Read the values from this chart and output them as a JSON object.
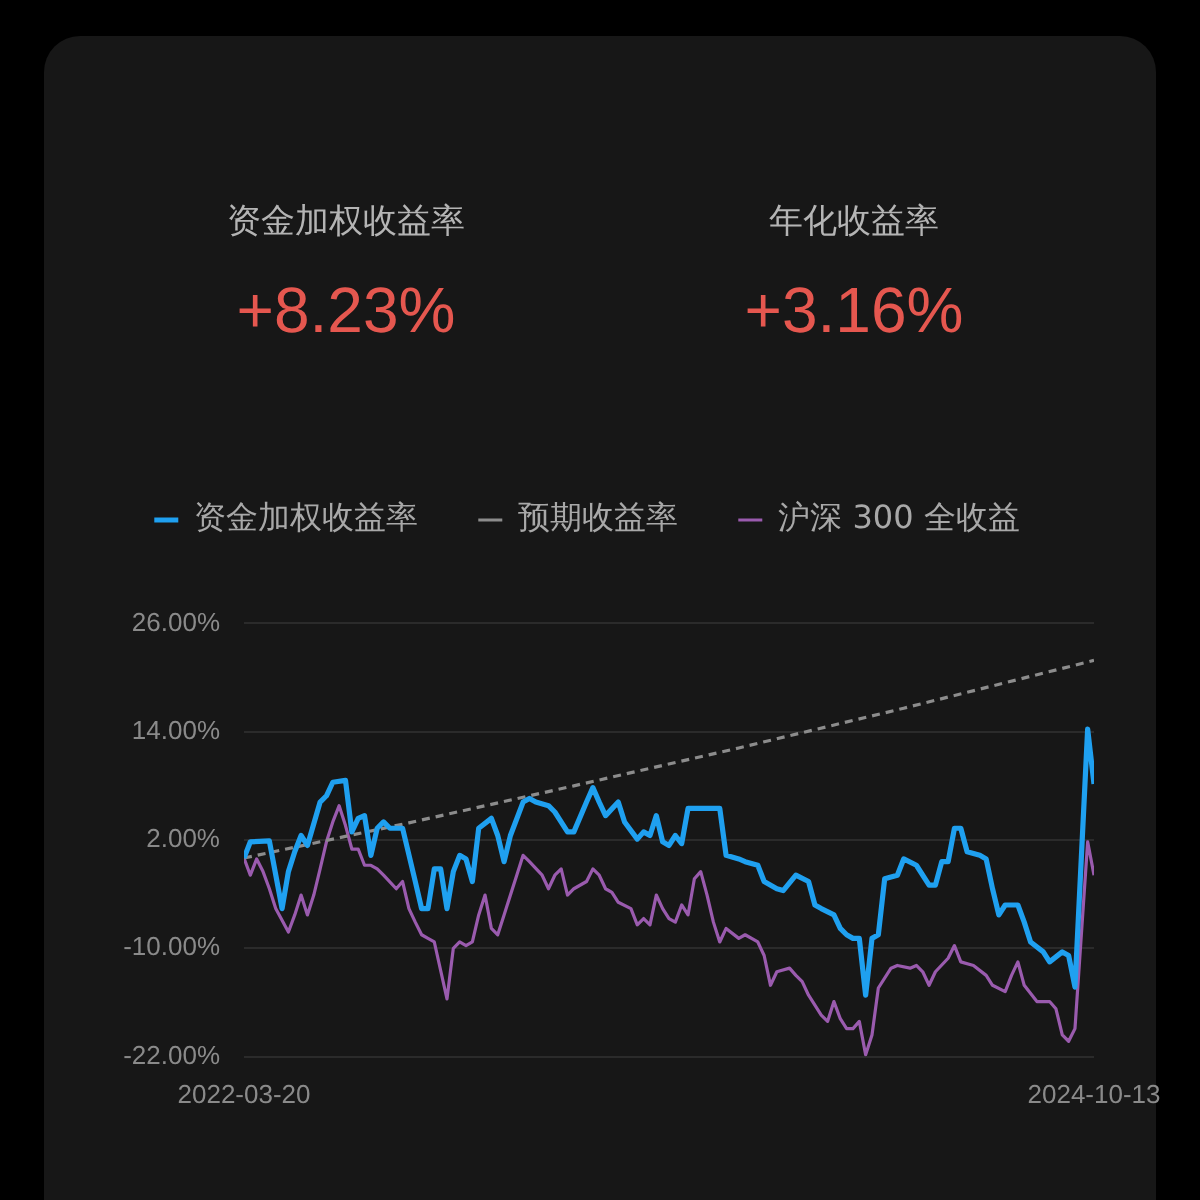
{
  "chart_data": [
    {
      "type": "other",
      "annotations": [
        "资金加权收益率",
        "+8.23%",
        "年化收益率",
        "+3.16%"
      ]
    },
    {
      "type": "line",
      "series": [
        {
          "name": "资金加权收益率",
          "color": "#1fa0f0",
          "x": [
            "2022-03-20",
            "2022-03-27",
            "2022-04-17",
            "2022-05-01",
            "2022-05-08",
            "2022-05-15",
            "2022-05-22",
            "2022-05-29",
            "2022-06-12",
            "2022-06-19",
            "2022-06-26",
            "2022-07-10",
            "2022-07-17",
            "2022-07-24",
            "2022-07-31",
            "2022-08-07",
            "2022-08-14",
            "2022-08-21",
            "2022-08-28",
            "2022-09-11",
            "2022-09-25",
            "2022-10-02",
            "2022-10-09",
            "2022-10-16",
            "2022-10-23",
            "2022-10-30",
            "2022-11-06",
            "2022-11-13",
            "2022-11-20",
            "2022-11-27",
            "2022-12-04",
            "2022-12-18",
            "2022-12-25",
            "2023-01-01",
            "2023-01-08",
            "2023-01-22",
            "2023-01-29",
            "2023-02-05",
            "2023-02-19",
            "2023-02-26",
            "2023-03-12",
            "2023-03-19",
            "2023-04-02",
            "2023-04-09",
            "2023-04-16",
            "2023-04-23",
            "2023-05-07",
            "2023-05-14",
            "2023-05-28",
            "2023-06-04",
            "2023-06-11",
            "2023-06-18",
            "2023-06-25",
            "2023-07-02",
            "2023-07-09",
            "2023-07-16",
            "2023-07-23",
            "2023-08-06",
            "2023-08-27",
            "2023-09-03",
            "2023-09-17",
            "2023-09-24",
            "2023-10-08",
            "2023-10-15",
            "2023-10-29",
            "2023-11-05",
            "2023-11-19",
            "2023-12-03",
            "2023-12-10",
            "2023-12-17",
            "2023-12-31",
            "2024-01-07",
            "2024-01-14",
            "2024-01-21",
            "2024-01-28",
            "2024-02-04",
            "2024-02-11",
            "2024-02-18",
            "2024-02-25",
            "2024-03-10",
            "2024-03-17",
            "2024-03-31",
            "2024-04-14",
            "2024-04-21",
            "2024-04-28",
            "2024-05-05",
            "2024-05-12",
            "2024-05-19",
            "2024-05-26",
            "2024-06-09",
            "2024-06-16",
            "2024-06-23",
            "2024-06-30",
            "2024-07-07",
            "2024-07-21",
            "2024-07-28",
            "2024-08-04",
            "2024-08-18",
            "2024-08-25",
            "2024-09-08",
            "2024-09-15",
            "2024-09-22",
            "2024-10-06",
            "2024-10-13"
          ],
          "values": [
            0,
            1.8,
            1.9,
            -5.6,
            -1.5,
            0.7,
            2.5,
            1.4,
            6.2,
            6.9,
            8.4,
            8.6,
            2.9,
            4.4,
            4.7,
            0.3,
            3.3,
            4.0,
            3.3,
            3.3,
            -2.6,
            -5.6,
            -5.6,
            -1.2,
            -1.2,
            -5.6,
            -1.5,
            0.3,
            -0.1,
            -2.6,
            3.3,
            4.4,
            2.5,
            -0.4,
            2.5,
            6.2,
            6.6,
            6.2,
            5.8,
            5.1,
            2.9,
            2.9,
            6.2,
            7.8,
            6.2,
            4.7,
            6.2,
            4.0,
            2.1,
            2.9,
            2.5,
            4.7,
            1.8,
            1.4,
            2.5,
            1.6,
            5.5,
            5.5,
            5.5,
            0.3,
            -0.1,
            -0.4,
            -0.8,
            -2.6,
            -3.4,
            -3.6,
            -1.9,
            -2.6,
            -5.2,
            -5.6,
            -6.3,
            -7.8,
            -8.5,
            -8.9,
            -8.9,
            -15.2,
            -8.9,
            -8.5,
            -2.3,
            -1.9,
            -0.1,
            -0.8,
            -3.0,
            -3.0,
            -0.4,
            -0.4,
            3.3,
            3.3,
            0.7,
            0.3,
            -0.1,
            -3.4,
            -6.3,
            -5.2,
            -5.2,
            -7.1,
            -9.3,
            -10.4,
            -11.5,
            -10.4,
            -10.8,
            -14.3,
            14.3,
            8.2
          ]
        },
        {
          "name": "预期收益率",
          "color": "#8c8c8c",
          "line_style": "dashed",
          "x": [
            "2022-03-20",
            "2022-09-18",
            "2023-03-19",
            "2023-09-17",
            "2024-03-17",
            "2024-10-13"
          ],
          "values": [
            0,
            3.9,
            8.0,
            12.2,
            16.6,
            21.9
          ]
        },
        {
          "name": "沪深 300 全收益",
          "color": "#9a5bae",
          "x": [
            "2022-03-20",
            "2022-03-27",
            "2022-04-03",
            "2022-04-10",
            "2022-04-17",
            "2022-04-24",
            "2022-05-08",
            "2022-05-15",
            "2022-05-22",
            "2022-05-29",
            "2022-06-05",
            "2022-06-12",
            "2022-06-19",
            "2022-06-26",
            "2022-07-03",
            "2022-07-10",
            "2022-07-17",
            "2022-07-24",
            "2022-07-31",
            "2022-08-07",
            "2022-08-14",
            "2022-08-21",
            "2022-09-04",
            "2022-09-11",
            "2022-09-18",
            "2022-09-25",
            "2022-10-02",
            "2022-10-09",
            "2022-10-16",
            "2022-10-30",
            "2022-11-06",
            "2022-11-13",
            "2022-11-20",
            "2022-11-27",
            "2022-12-04",
            "2022-12-11",
            "2022-12-18",
            "2022-12-25",
            "2023-01-01",
            "2023-01-15",
            "2023-01-22",
            "2023-01-29",
            "2023-02-12",
            "2023-02-19",
            "2023-02-26",
            "2023-03-05",
            "2023-03-12",
            "2023-03-19",
            "2023-04-02",
            "2023-04-09",
            "2023-04-16",
            "2023-04-23",
            "2023-04-30",
            "2023-05-07",
            "2023-05-21",
            "2023-05-28",
            "2023-06-04",
            "2023-06-11",
            "2023-06-18",
            "2023-06-25",
            "2023-07-02",
            "2023-07-09",
            "2023-07-16",
            "2023-07-23",
            "2023-07-30",
            "2023-08-06",
            "2023-08-13",
            "2023-08-20",
            "2023-08-27",
            "2023-09-03",
            "2023-09-17",
            "2023-09-24",
            "2023-10-08",
            "2023-10-15",
            "2023-10-22",
            "2023-10-29",
            "2023-11-12",
            "2023-11-19",
            "2023-11-26",
            "2023-12-03",
            "2023-12-17",
            "2023-12-24",
            "2023-12-31",
            "2024-01-07",
            "2024-01-14",
            "2024-01-21",
            "2024-01-28",
            "2024-02-04",
            "2024-02-11",
            "2024-02-18",
            "2024-03-03",
            "2024-03-10",
            "2024-03-24",
            "2024-03-31",
            "2024-04-07",
            "2024-04-14",
            "2024-04-21",
            "2024-05-05",
            "2024-05-12",
            "2024-05-19",
            "2024-06-02",
            "2024-06-16",
            "2024-06-23",
            "2024-07-07",
            "2024-07-14",
            "2024-07-21",
            "2024-07-28",
            "2024-08-11",
            "2024-08-25",
            "2024-09-01",
            "2024-09-08",
            "2024-09-15",
            "2024-09-22",
            "2024-10-06",
            "2024-10-13"
          ],
          "values": [
            0,
            -1.9,
            -0.1,
            -1.5,
            -3.4,
            -5.6,
            -8.2,
            -6.3,
            -4.1,
            -6.3,
            -4.1,
            -1.2,
            1.8,
            4.0,
            5.8,
            3.6,
            1.0,
            1.0,
            -0.8,
            -0.8,
            -1.2,
            -1.9,
            -3.4,
            -2.6,
            -5.6,
            -7.1,
            -8.5,
            -8.9,
            -9.3,
            -15.6,
            -10.0,
            -9.3,
            -9.7,
            -9.3,
            -6.3,
            -4.1,
            -7.8,
            -8.5,
            -6.3,
            -1.9,
            0.3,
            -0.4,
            -1.9,
            -3.4,
            -1.9,
            -1.2,
            -4.1,
            -3.4,
            -2.6,
            -1.2,
            -1.9,
            -3.4,
            -3.8,
            -4.9,
            -5.6,
            -7.4,
            -6.7,
            -7.4,
            -4.1,
            -5.6,
            -6.7,
            -7.1,
            -5.2,
            -6.3,
            -2.3,
            -1.5,
            -4.1,
            -7.1,
            -9.3,
            -7.8,
            -8.9,
            -8.5,
            -9.3,
            -10.8,
            -14.1,
            -12.6,
            -12.2,
            -13.0,
            -13.7,
            -15.2,
            -17.4,
            -18.1,
            -15.9,
            -17.8,
            -18.9,
            -18.9,
            -18.1,
            -21.8,
            -19.6,
            -14.4,
            -12.2,
            -11.9,
            -12.2,
            -11.9,
            -12.6,
            -14.1,
            -12.6,
            -11.1,
            -9.7,
            -11.5,
            -11.9,
            -13.0,
            -14.1,
            -14.8,
            -13.0,
            -11.5,
            -14.1,
            -15.9,
            -15.9,
            -16.7,
            -19.6,
            -20.3,
            -18.9,
            1.8,
            -1.9
          ]
        }
      ],
      "xlim": [
        "2022-03-20",
        "2024-10-13"
      ],
      "xticks": [
        "2022-03-20",
        "2024-10-13"
      ],
      "ylim": [
        -22,
        26
      ],
      "yticks": [
        {
          "value": -22,
          "label": "-22.00%"
        },
        {
          "value": -10,
          "label": "-10.00%"
        },
        {
          "value": 2,
          "label": "2.00%"
        },
        {
          "value": 14,
          "label": "14.00%"
        },
        {
          "value": 26,
          "label": "26.00%"
        }
      ],
      "grid": "y",
      "legend": "top",
      "marker": "none",
      "line_style": "solid"
    }
  ]
}
